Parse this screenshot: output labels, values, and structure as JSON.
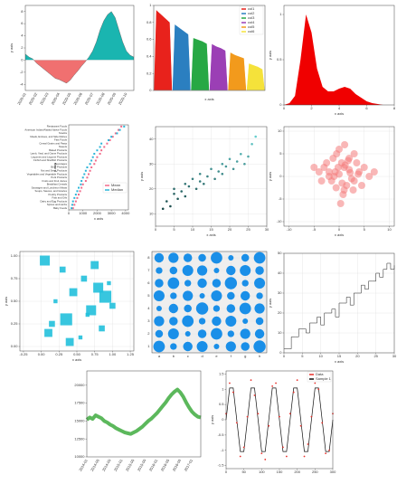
{
  "chart_data": [
    {
      "type": "area",
      "ylabel": "y axis",
      "categories": [
        "2020-01",
        null,
        null,
        "2020-02",
        null,
        null,
        "2020-03",
        null,
        null,
        "2020-04",
        null,
        null,
        "2020-05",
        null,
        null,
        "2020-06",
        null,
        null,
        "2020-07",
        null,
        null,
        "2020-08",
        null,
        null,
        "2020-09",
        null,
        null,
        "2020-10",
        null,
        null
      ],
      "values": [
        1,
        0.5,
        0.2,
        -0.5,
        -1,
        -1.5,
        -2,
        -2.5,
        -3,
        -3.2,
        -3.5,
        -3.8,
        -3.3,
        -2.5,
        -1.8,
        -1,
        -0.3,
        0.5,
        1.5,
        3,
        5,
        6.5,
        7.5,
        8,
        7,
        5,
        3,
        1.5,
        0.8,
        0.5
      ],
      "color_above": "#1ab5b0",
      "color_below": "#f07070",
      "ylim": [
        -5,
        9
      ],
      "yticks": [
        -4,
        -2,
        0,
        2,
        4,
        6,
        8
      ],
      "grid": false
    },
    {
      "type": "groups",
      "xlabel": "x axis",
      "legend": "upper right",
      "ylim": [
        0,
        1
      ],
      "yticks": [
        0,
        0.2,
        0.4,
        0.6,
        0.8,
        1
      ],
      "grid": false,
      "series": [
        {
          "name": "col1",
          "color": "#e8221c",
          "values": [
            0.95,
            0.9,
            0.85,
            0.8
          ]
        },
        {
          "name": "col2",
          "color": "#2b7fc0",
          "values": [
            0.78,
            0.74,
            0.7,
            0.66
          ]
        },
        {
          "name": "col3",
          "color": "#27a844",
          "values": [
            0.62,
            0.6,
            0.58,
            0.55
          ]
        },
        {
          "name": "col4",
          "color": "#9b3fb5",
          "values": [
            0.55,
            0.52,
            0.5,
            0.47
          ]
        },
        {
          "name": "col5",
          "color": "#f29a1c",
          "values": [
            0.45,
            0.42,
            0.4,
            0.38
          ]
        },
        {
          "name": "col6",
          "color": "#f5e23a",
          "values": [
            0.32,
            0.3,
            0.28,
            0.25
          ]
        }
      ]
    },
    {
      "type": "density",
      "xlabel": "x axis",
      "ylabel": "y axis",
      "color": "#f00000",
      "x": [
        0,
        0.4,
        0.8,
        1.2,
        1.6,
        2,
        2.4,
        2.8,
        3.2,
        3.6,
        4,
        4.4,
        4.8,
        5.2,
        5.6,
        6,
        6.4,
        6.8,
        7.2,
        7.6,
        8
      ],
      "values": [
        0,
        0.02,
        0.1,
        0.5,
        1,
        0.8,
        0.4,
        0.2,
        0.15,
        0.15,
        0.18,
        0.2,
        0.18,
        0.12,
        0.08,
        0.04,
        0.02,
        0.01,
        0,
        0,
        0
      ],
      "xlim": [
        0,
        8
      ],
      "xticks": [
        0,
        2,
        4,
        6,
        8
      ],
      "ylim": [
        0,
        1.1
      ],
      "yticks": [
        0,
        0.5,
        1
      ],
      "grid": false
    },
    {
      "type": "dot",
      "xlabel": "x axis",
      "ylabel": "y axis",
      "legend": "center right",
      "xlim": [
        0,
        4200
      ],
      "xticks": [
        0,
        1000,
        2000,
        3000,
        4000
      ],
      "grid": false,
      "categories": [
        "Restaurant Foods",
        "American Indian/Alaska Native Foods",
        "Snacks",
        "Meals, Entrees, and Side Dishes",
        "Fast Foods",
        "Cereal Grains and Pasta",
        "Sweets",
        "Baked Products",
        "Lamb, Veal, and Game Products",
        "Legumes and Legume Products",
        "Finfish and Shellfish Products",
        "Beverages",
        "Beef Products",
        "Nut and Seed Products",
        "Vegetables and Vegetable Products",
        "Pork Products",
        "Fruits and Fruit Juices",
        "Breakfast Cereals",
        "Sausages and Luncheon Meats",
        "Soups, Sauces, and Gravies",
        "Poultry Products",
        "Fats and Oils",
        "Dairy and Egg Products",
        "Spices and Herbs",
        "Baby Foods"
      ],
      "series": [
        {
          "name": "Mean",
          "color": "#f06b8a",
          "values": [
            3700,
            3500,
            3300,
            3100,
            2900,
            2700,
            2500,
            2300,
            2200,
            2000,
            1900,
            1800,
            1600,
            1500,
            1400,
            1300,
            1200,
            1000,
            900,
            800,
            700,
            600,
            500,
            400,
            300
          ]
        },
        {
          "name": "Median",
          "color": "#2bb5d8",
          "values": [
            3900,
            3600,
            3400,
            3000,
            2800,
            2300,
            2200,
            2000,
            1800,
            1700,
            1600,
            1500,
            1300,
            1200,
            1100,
            1000,
            900,
            850,
            700,
            600,
            500,
            400,
            300,
            250,
            200
          ]
        }
      ]
    },
    {
      "type": "scatter",
      "xlabel": "x axis",
      "ylabel": "y axis",
      "colormap": [
        "#0a2a2a",
        "#6fe0e0"
      ],
      "x": [
        2,
        3,
        4,
        5,
        5,
        6,
        7,
        8,
        8,
        9,
        10,
        11,
        12,
        12,
        13,
        14,
        15,
        16,
        17,
        18,
        18,
        19,
        20,
        21,
        22,
        23,
        24,
        25,
        26,
        27
      ],
      "values": [
        12,
        15,
        13,
        18,
        20,
        16,
        19,
        22,
        17,
        21,
        24,
        20,
        23,
        26,
        22,
        25,
        28,
        24,
        27,
        30,
        26,
        29,
        32,
        28,
        31,
        34,
        30,
        33,
        38,
        41
      ],
      "xlim": [
        0,
        30
      ],
      "xticks": [
        0,
        5,
        10,
        15,
        20,
        25,
        30
      ],
      "ylim": [
        5,
        45
      ],
      "yticks": [
        10,
        20,
        30,
        40
      ],
      "grid": true
    },
    {
      "type": "scatter",
      "xlabel": "x axis",
      "ylabel": "y axis",
      "color": "#f47c7c",
      "x": [
        -2,
        1,
        3,
        0.5,
        -1,
        2,
        4,
        -3,
        1.5,
        0,
        -0.5,
        2.5,
        5,
        -4,
        1,
        3.5,
        0,
        -1.5,
        2,
        6,
        -2.5,
        0.8,
        1.2,
        -0.8,
        3,
        4.5,
        -3.5,
        2.2,
        0.3,
        -1.2,
        1.8,
        -5,
        7,
        0.6,
        -0.2,
        2.8,
        -2,
        1.1,
        3.8,
        -0.6
      ],
      "values": [
        1,
        2,
        -1,
        3,
        0,
        4,
        1,
        2,
        -2,
        0.5,
        5,
        -0.5,
        2,
        1,
        -3,
        3,
        6,
        -1,
        1.5,
        0,
        3,
        -4,
        2.5,
        1,
        5,
        -2,
        -1,
        0.8,
        -6,
        4,
        3.5,
        2,
        1,
        -1.5,
        2,
        -3,
        0,
        7,
        0.5,
        -2.5
      ],
      "xlim": [
        -11,
        11
      ],
      "xticks": [
        -10,
        -5,
        0,
        5,
        10
      ],
      "ylim": [
        -11,
        11
      ],
      "yticks": [
        -10,
        -5,
        0,
        5,
        10
      ],
      "grid": true
    },
    {
      "type": "squares",
      "xlabel": "x axis",
      "ylabel": "y axis",
      "color": "#22c0dc",
      "x": [
        0.05,
        0.1,
        0.2,
        0.3,
        0.35,
        0.45,
        0.55,
        0.6,
        0.7,
        0.75,
        0.85,
        0.9,
        0.95,
        0.15,
        0.4,
        0.65,
        0.8,
        1.0
      ],
      "values": [
        0.95,
        0.15,
        0.5,
        0.85,
        0.3,
        0.6,
        0.1,
        0.75,
        0.4,
        0.9,
        0.2,
        0.55,
        0.7,
        0.25,
        0.05,
        0.35,
        0.65,
        0.45
      ],
      "sizes": [
        5,
        4,
        2,
        3,
        6,
        4,
        2,
        3,
        5,
        4,
        3,
        6,
        2,
        3,
        4,
        2,
        5,
        3
      ],
      "xlim": [
        -0.3,
        1.3
      ],
      "xticks": [
        -0.25,
        {
          "value": 0,
          "label": "0.00"
        },
        0.25,
        {
          "value": 0.5,
          "label": "0.50"
        },
        0.75,
        {
          "value": 1,
          "label": "1.00"
        },
        1.25
      ],
      "ylim": [
        -0.05,
        1.05
      ],
      "yticks": [
        {
          "value": 0,
          "label": "0.00"
        },
        0.25,
        {
          "value": 0.5,
          "label": "0.50"
        },
        0.75,
        {
          "value": 1,
          "label": "1.00"
        }
      ],
      "grid": true
    },
    {
      "type": "bubblegrid",
      "color": "#1a8fe8",
      "xcategories": [
        "a",
        "b",
        "c",
        "d",
        "e",
        "f",
        "g",
        "h"
      ],
      "ycategories": [
        "1",
        "2",
        "3",
        "4",
        "5",
        "6",
        "7",
        "8"
      ],
      "sizes": [
        [
          0.9,
          0.3,
          0.6,
          0.8,
          0.2,
          0.7,
          0.5,
          1.0
        ],
        [
          0.4,
          0.8,
          0.2,
          0.5,
          0.9,
          0.3,
          0.7,
          0.6
        ],
        [
          0.7,
          0.5,
          0.9,
          0.3,
          0.6,
          0.8,
          0.2,
          0.4
        ],
        [
          0.2,
          0.6,
          0.4,
          1.0,
          0.3,
          0.5,
          0.9,
          0.7
        ],
        [
          0.8,
          0.3,
          0.7,
          0.2,
          0.8,
          0.4,
          0.6,
          0.3
        ],
        [
          0.5,
          0.9,
          0.3,
          0.6,
          0.5,
          1.0,
          0.3,
          0.8
        ],
        [
          0.3,
          0.4,
          0.8,
          0.7,
          0.2,
          0.6,
          0.8,
          0.5
        ],
        [
          0.6,
          0.7,
          0.5,
          0.4,
          0.9,
          0.2,
          0.4,
          0.9
        ]
      ],
      "grid": true
    },
    {
      "type": "step",
      "xlabel": "x axis",
      "ylabel": "y axis",
      "color": "#444444",
      "x": [
        0,
        1,
        2,
        3,
        4,
        5,
        6,
        7,
        8,
        9,
        10,
        11,
        12,
        13,
        14,
        15,
        16,
        17,
        18,
        19,
        20,
        21,
        22,
        23,
        24,
        25,
        26,
        27,
        28,
        29,
        30
      ],
      "values": [
        2,
        2,
        8,
        8,
        12,
        12,
        10,
        15,
        15,
        18,
        14,
        20,
        20,
        22,
        18,
        25,
        25,
        28,
        24,
        30,
        30,
        34,
        32,
        36,
        36,
        40,
        38,
        42,
        45,
        42,
        44
      ],
      "xlim": [
        0,
        30
      ],
      "xticks": [
        0,
        5,
        10,
        15,
        20,
        25,
        30
      ],
      "ylim": [
        0,
        50
      ],
      "yticks": [
        0,
        10,
        20,
        30,
        40,
        50
      ],
      "grid": true
    },
    {
      "type": "line",
      "color": "#5cb85c",
      "categories": [
        "2014-01",
        null,
        null,
        null,
        "2014-05",
        null,
        null,
        null,
        "2014-09",
        null,
        null,
        null,
        "2015-01",
        null,
        null,
        null,
        "2015-05",
        null,
        null,
        null,
        "2015-09",
        null,
        null,
        null,
        "2016-01",
        null,
        null,
        null,
        "2016-05",
        null,
        null,
        null,
        "2016-09",
        null,
        null,
        null,
        "2017-01",
        null,
        null,
        null
      ],
      "values": [
        15200,
        15500,
        15300,
        15800,
        15600,
        15400,
        15000,
        14800,
        14500,
        14300,
        14000,
        13800,
        13600,
        13400,
        13300,
        13200,
        13400,
        13600,
        13900,
        14200,
        14600,
        15000,
        15300,
        15700,
        16100,
        16600,
        17100,
        17600,
        18200,
        18700,
        19100,
        19400,
        19000,
        18400,
        17600,
        16900,
        16300,
        15900,
        15600,
        15500
      ],
      "ylim": [
        10000,
        22000
      ],
      "yticks": [
        10000,
        12500,
        15000,
        17500,
        20000
      ],
      "grid": false
    },
    {
      "type": "scatterline",
      "ylabel": "y axis",
      "legend": "upper right",
      "x": [
        0,
        10,
        20,
        30,
        40,
        50,
        60,
        70,
        80,
        90,
        100,
        110,
        120,
        130,
        140,
        150,
        160,
        170,
        180,
        190,
        200,
        210,
        220,
        230,
        240,
        250,
        260,
        270,
        280,
        290,
        300
      ],
      "series": [
        {
          "name": "Data",
          "color": "#e8302a",
          "values": [
            0.2,
            1.2,
            0.9,
            -0.1,
            -1.2,
            -0.9,
            0.1,
            1.3,
            0.8,
            0.2,
            -1.1,
            -1.3,
            -0.2,
            1.1,
            1.2,
            0.1,
            -0.9,
            -1.2,
            0.2,
            0.9,
            1.3,
            -0.2,
            -1.2,
            -0.8,
            0.1,
            1.2,
            1.0,
            -0.1,
            -1.1,
            -1.0,
            0.2
          ]
        },
        {
          "name": "Sample 1",
          "color": "#111111",
          "values": [
            0,
            1.04,
            1.04,
            0,
            -1.04,
            -1.04,
            0,
            1.04,
            1.04,
            0,
            -1.04,
            -1.04,
            0,
            1.04,
            1.04,
            0,
            -1.04,
            -1.04,
            0,
            1.04,
            1.04,
            0,
            -1.04,
            -1.04,
            0,
            1.04,
            1.04,
            0,
            -1.04,
            -1.04,
            0
          ]
        }
      ],
      "xlim": [
        0,
        300
      ],
      "xticks": [
        0,
        50,
        100,
        150,
        200,
        250,
        300
      ],
      "ylim": [
        -1.6,
        1.6
      ],
      "yticks": [
        -1.5,
        -1,
        -0.5,
        0,
        0.5,
        1,
        1.5
      ],
      "grid": false
    }
  ]
}
